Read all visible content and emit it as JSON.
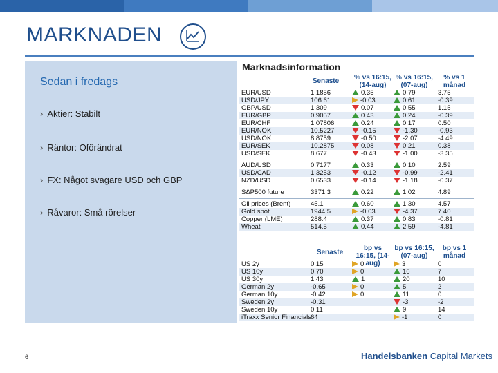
{
  "colors": {
    "title": "#1f4e8c",
    "panel": "#c9d9ec",
    "up": "#3a9a3a",
    "down": "#d33333",
    "flat": "#e0a526"
  },
  "title": "MARKNADEN",
  "left": {
    "subhead": "Sedan i fredags",
    "bullets": [
      "Aktier: Stabilt",
      "Räntor: Oförändrat",
      "FX: Något svagare USD och GBP",
      "Råvaror: Små rörelser"
    ]
  },
  "table": {
    "title": "Marknadsinformation",
    "headers1": [
      "Senaste",
      "% vs 16:15, (14-aug)",
      "% vs 16:15, (07-aug)",
      "% vs 1 månad"
    ],
    "headers2": [
      "Senaste",
      "bp vs 16:15, (14-aug)",
      "bp vs 16:15, (07-aug)",
      "bp vs 1 månad"
    ],
    "fx1": [
      {
        "name": "EUR/USD",
        "last": "1.1856",
        "d1": "0.35",
        "a1": "up",
        "d2": "0.79",
        "a2": "up",
        "m": "3.75"
      },
      {
        "name": "USD/JPY",
        "last": "106.61",
        "d1": "-0.03",
        "a1": "flat",
        "d2": "0.61",
        "a2": "up",
        "m": "-0.39"
      },
      {
        "name": "GBP/USD",
        "last": "1.309",
        "d1": "0.07",
        "a1": "down",
        "d2": "0.55",
        "a2": "up",
        "m": "1.15"
      },
      {
        "name": "EUR/GBP",
        "last": "0.9057",
        "d1": "0.43",
        "a1": "up",
        "d2": "0.24",
        "a2": "up",
        "m": "-0.39"
      },
      {
        "name": "EUR/CHF",
        "last": "1.07806",
        "d1": "0.24",
        "a1": "up",
        "d2": "0.17",
        "a2": "up",
        "m": "0.50"
      },
      {
        "name": "EUR/NOK",
        "last": "10.5227",
        "d1": "-0.15",
        "a1": "down",
        "d2": "-1.30",
        "a2": "down",
        "m": "-0.93"
      },
      {
        "name": "USD/NOK",
        "last": "8.8759",
        "d1": "-0.50",
        "a1": "down",
        "d2": "-2.07",
        "a2": "down",
        "m": "-4.49"
      },
      {
        "name": "EUR/SEK",
        "last": "10.2875",
        "d1": "0.08",
        "a1": "down",
        "d2": "0.21",
        "a2": "down",
        "m": "0.38"
      },
      {
        "name": "USD/SEK",
        "last": "8.677",
        "d1": "-0.43",
        "a1": "down",
        "d2": "-1.00",
        "a2": "down",
        "m": "-3.35"
      }
    ],
    "fx2": [
      {
        "name": "AUD/USD",
        "last": "0.7177",
        "d1": "0.33",
        "a1": "up",
        "d2": "0.10",
        "a2": "up",
        "m": "2.59"
      },
      {
        "name": "USD/CAD",
        "last": "1.3253",
        "d1": "-0.12",
        "a1": "down",
        "d2": "-0.99",
        "a2": "down",
        "m": "-2.41"
      },
      {
        "name": "NZD/USD",
        "last": "0.6533",
        "d1": "-0.14",
        "a1": "down",
        "d2": "-1.18",
        "a2": "down",
        "m": "-0.37"
      }
    ],
    "eq": [
      {
        "name": "S&P500 future",
        "last": "3371.3",
        "d1": "0.22",
        "a1": "up",
        "d2": "1.02",
        "a2": "up",
        "m": "4.89"
      }
    ],
    "cmd": [
      {
        "name": "Oil prices (Brent)",
        "last": "45.1",
        "d1": "0.60",
        "a1": "up",
        "d2": "1.30",
        "a2": "up",
        "m": "4.57"
      },
      {
        "name": "Gold spot",
        "last": "1944.5",
        "d1": "-0.03",
        "a1": "flat",
        "d2": "-4.37",
        "a2": "down",
        "m": "7.40"
      },
      {
        "name": "Copper (LME)",
        "last": "288.4",
        "d1": "0.37",
        "a1": "up",
        "d2": "0.83",
        "a2": "up",
        "m": "-0.81"
      },
      {
        "name": "Wheat",
        "last": "514.5",
        "d1": "0.44",
        "a1": "up",
        "d2": "2.59",
        "a2": "up",
        "m": "-4.81"
      }
    ],
    "rates": [
      {
        "name": "US 2y",
        "last": "0.15",
        "d1": "0",
        "a1": "flat",
        "d2": "3",
        "a2": "flat",
        "m": "0"
      },
      {
        "name": "US 10y",
        "last": "0.70",
        "d1": "0",
        "a1": "flat",
        "d2": "16",
        "a2": "up",
        "m": "7"
      },
      {
        "name": "US 30y",
        "last": "1.43",
        "d1": "1",
        "a1": "up",
        "d2": "20",
        "a2": "up",
        "m": "10"
      },
      {
        "name": "German 2y",
        "last": "-0.65",
        "d1": "0",
        "a1": "flat",
        "d2": "5",
        "a2": "up",
        "m": "2"
      },
      {
        "name": "German 10y",
        "last": "-0.42",
        "d1": "0",
        "a1": "flat",
        "d2": "11",
        "a2": "up",
        "m": "0"
      },
      {
        "name": "Sweden 2y",
        "last": "-0.31",
        "d1": "",
        "a1": "",
        "d2": "-3",
        "a2": "down",
        "m": "-2"
      },
      {
        "name": "Sweden 10y",
        "last": "0.11",
        "d1": "",
        "a1": "",
        "d2": "9",
        "a2": "up",
        "m": "14"
      },
      {
        "name": "iTraxx Senior Financials",
        "last": "64",
        "d1": "",
        "a1": "",
        "d2": "-1",
        "a2": "flat",
        "m": "0"
      }
    ]
  },
  "footer": {
    "page": "6",
    "brand_bold": "Handelsbanken",
    "brand_rest": "Capital Markets"
  }
}
